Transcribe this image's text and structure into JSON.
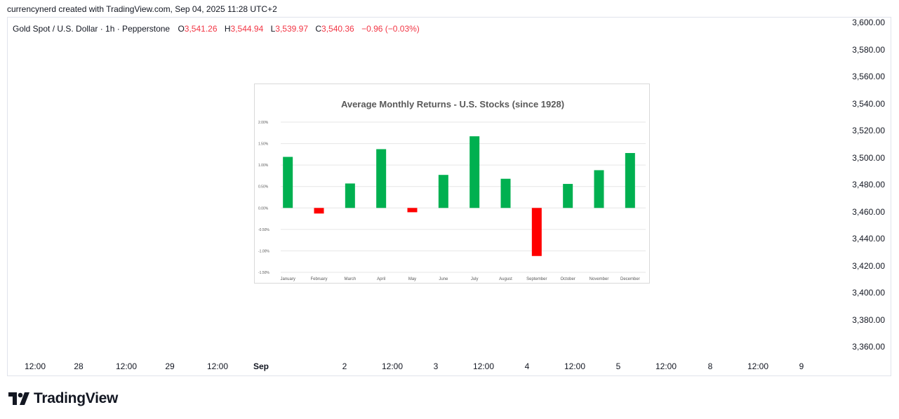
{
  "header": {
    "attribution": "currencynerd created with TradingView.com, Sep 04, 2025 11:28 UTC+2"
  },
  "legend": {
    "symbol": "Gold Spot / U.S. Dollar · 1h · Pepperstone",
    "open_label": "O",
    "open": "3,541.26",
    "high_label": "H",
    "high": "3,544.94",
    "low_label": "L",
    "low": "3,539.97",
    "close_label": "C",
    "close": "3,540.36",
    "change": "−0.96 (−0.03%)"
  },
  "price_axis": {
    "ticks": [
      "3,600.00",
      "3,580.00",
      "3,560.00",
      "3,540.00",
      "3,520.00",
      "3,500.00",
      "3,480.00",
      "3,460.00",
      "3,440.00",
      "3,420.00",
      "3,400.00",
      "3,380.00",
      "3,360.00"
    ]
  },
  "time_axis": {
    "ticks": [
      {
        "label": "12:00",
        "bold": false
      },
      {
        "label": "28",
        "bold": false
      },
      {
        "label": "12:00",
        "bold": false
      },
      {
        "label": "29",
        "bold": false
      },
      {
        "label": "12:00",
        "bold": false
      },
      {
        "label": "Sep",
        "bold": true
      },
      {
        "label": "2",
        "bold": false
      },
      {
        "label": "12:00",
        "bold": false
      },
      {
        "label": "3",
        "bold": false
      },
      {
        "label": "12:00",
        "bold": false
      },
      {
        "label": "4",
        "bold": false
      },
      {
        "label": "12:00",
        "bold": false
      },
      {
        "label": "5",
        "bold": false
      },
      {
        "label": "12:00",
        "bold": false
      },
      {
        "label": "8",
        "bold": false
      },
      {
        "label": "12:00",
        "bold": false
      },
      {
        "label": "9",
        "bold": false
      }
    ]
  },
  "brand": {
    "name": "TradingView"
  },
  "colors": {
    "positive": "#00b050",
    "negative": "#ff0000",
    "grid": "#e6e6e6",
    "title": "#595959",
    "text": "#131722",
    "legend_red": "#f23645"
  },
  "chart_data": {
    "type": "bar",
    "title": "Average Monthly Returns - U.S. Stocks (since 1928)",
    "xlabel": "",
    "ylabel": "",
    "ylim": [
      -0.015,
      0.02
    ],
    "ytick_labels": [
      "2.00%",
      "1.50%",
      "1.00%",
      "0.50%",
      "0.00%",
      "-0.50%",
      "-1.00%",
      "-1.50%"
    ],
    "ytick_values": [
      0.02,
      0.015,
      0.01,
      0.005,
      0.0,
      -0.005,
      -0.01,
      -0.015
    ],
    "grid": true,
    "categories": [
      "January",
      "February",
      "March",
      "April",
      "May",
      "June",
      "July",
      "August",
      "September",
      "October",
      "November",
      "December"
    ],
    "values": [
      0.0119,
      -0.0013,
      0.0057,
      0.0137,
      -0.001,
      0.0077,
      0.0167,
      0.0068,
      -0.0112,
      0.0056,
      0.0088,
      0.0128
    ]
  }
}
